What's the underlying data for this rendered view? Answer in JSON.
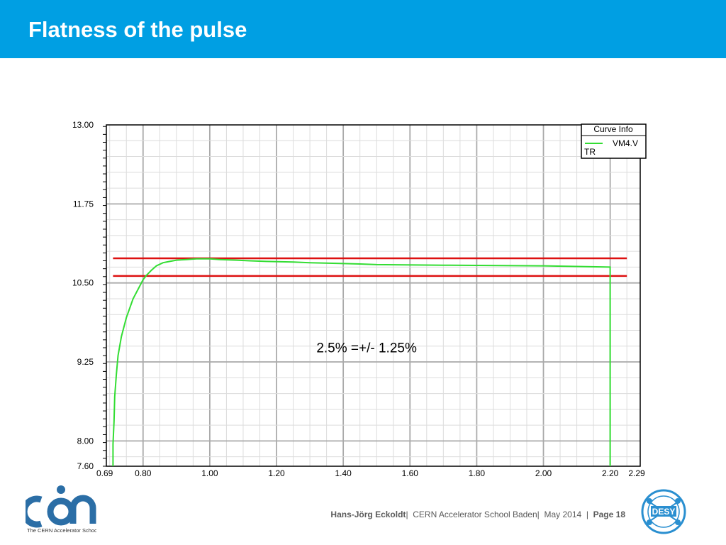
{
  "slide": {
    "title": "Flatness of the pulse"
  },
  "chart_data": {
    "type": "line",
    "xlim": [
      0.69,
      2.29
    ],
    "ylim": [
      7.6,
      13.0
    ],
    "x_ticks": [
      "0.69",
      "0.80",
      "1.00",
      "1.20",
      "1.40",
      "1.60",
      "1.80",
      "2.00",
      "2.20",
      "2.29"
    ],
    "y_ticks": [
      "13.00",
      "11.75",
      "10.50",
      "9.25",
      "8.00",
      "7.60"
    ],
    "grid": true,
    "legend": {
      "title": "Curve Info",
      "placement": "top-right",
      "entries": [
        {
          "name": "VM4.V",
          "sub": "TR",
          "color": "#33dd33"
        }
      ]
    },
    "series": [
      {
        "name": "VM4.V",
        "color": "#33dd33",
        "x": [
          0.71,
          0.71,
          0.713,
          0.715,
          0.72,
          0.725,
          0.735,
          0.75,
          0.77,
          0.79,
          0.8,
          0.81,
          0.825,
          0.84,
          0.86,
          0.88,
          0.9,
          0.93,
          0.96,
          1.0,
          1.03,
          1.08,
          1.12,
          1.17,
          1.25,
          1.3,
          1.38,
          1.45,
          1.5,
          1.7,
          2.0,
          2.1,
          2.2,
          2.2
        ],
        "y": [
          7.6,
          7.95,
          8.3,
          8.7,
          9.05,
          9.35,
          9.65,
          9.95,
          10.25,
          10.45,
          10.55,
          10.62,
          10.7,
          10.77,
          10.82,
          10.84,
          10.86,
          10.87,
          10.88,
          10.88,
          10.87,
          10.86,
          10.85,
          10.84,
          10.83,
          10.82,
          10.81,
          10.8,
          10.79,
          10.78,
          10.77,
          10.76,
          10.75,
          7.6
        ]
      }
    ],
    "reference_lines": [
      {
        "y": 10.89,
        "x_start": 0.71,
        "x_end": 2.25,
        "color": "#dd1111"
      },
      {
        "y": 10.61,
        "x_start": 0.71,
        "x_end": 2.25,
        "color": "#dd1111"
      }
    ],
    "annotation": {
      "text": "2.5% =+/- 1.25%",
      "x": 1.47,
      "y": 9.4
    }
  },
  "footer": {
    "author": "Hans-Jörg Eckoldt",
    "event": "CERN Accelerator School Baden",
    "date": "May 2014",
    "page": "Page 18"
  },
  "logos": {
    "cas_caption": "The CERN Accelerator School",
    "desy_text": "DESY"
  },
  "colors": {
    "header": "#009fe3",
    "curve": "#33dd33",
    "limits": "#dd1111"
  }
}
